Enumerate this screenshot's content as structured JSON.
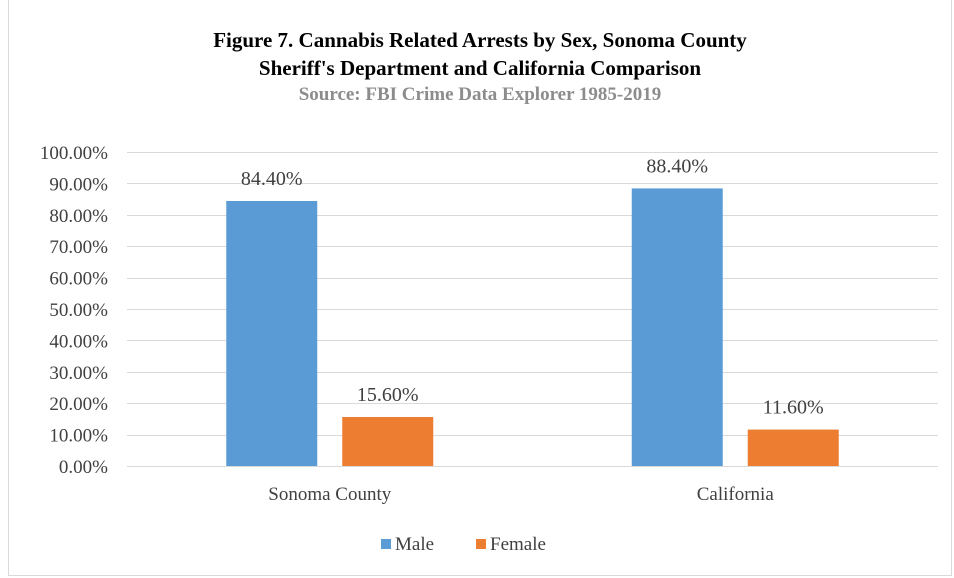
{
  "chart_data": {
    "type": "bar",
    "title_line1": "Figure 7. Cannabis  Related  Arrests by  Sex, Sonoma  County",
    "title_line2": "Sheriff's  Department  and  California Comparison",
    "subtitle": "Source: FBI  Crime  Data  Explorer  1985-2019",
    "xlabel": "",
    "ylabel": "",
    "categories": [
      "Sonoma County",
      "California"
    ],
    "series": [
      {
        "name": "Male",
        "color": "#5b9bd5",
        "values": [
          84.4,
          88.4
        ],
        "labels": [
          "84.40%",
          "88.40%"
        ]
      },
      {
        "name": "Female",
        "color": "#ed7d31",
        "values": [
          15.6,
          11.6
        ],
        "labels": [
          "15.60%",
          "11.60%"
        ]
      }
    ],
    "ylim": [
      0,
      100
    ],
    "yticks": [
      0,
      10,
      20,
      30,
      40,
      50,
      60,
      70,
      80,
      90,
      100
    ],
    "ytick_labels": [
      "0.00%",
      "10.00%",
      "20.00%",
      "30.00%",
      "40.00%",
      "50.00%",
      "60.00%",
      "70.00%",
      "80.00%",
      "90.00%",
      "100.00%"
    ],
    "grid": true,
    "legend_position": "bottom",
    "gridline_color": "#d9d9d9",
    "axis_label_color": "#404040"
  }
}
